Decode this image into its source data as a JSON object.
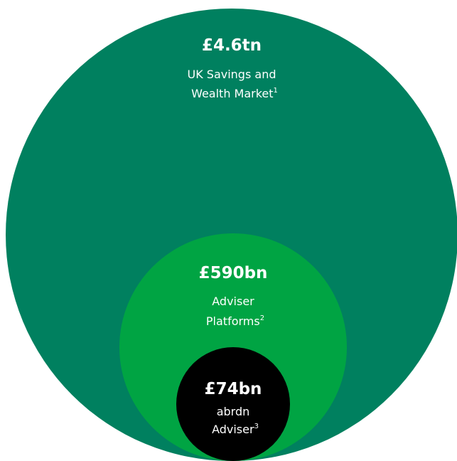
{
  "nodes": [
    {
      "value": "£4.6tn",
      "label_lines": [
        "UK Savings and",
        "Wealth Market"
      ],
      "note": "1"
    },
    {
      "value": "£590bn",
      "label_lines": [
        "Adviser",
        "Platforms"
      ],
      "note": "2"
    },
    {
      "value": "£74bn",
      "label_lines": [
        "abrdn",
        "Adviser"
      ],
      "note": "3"
    }
  ]
}
